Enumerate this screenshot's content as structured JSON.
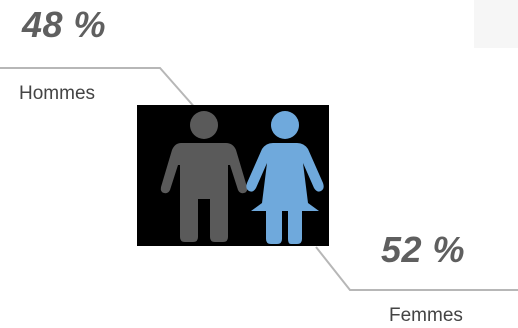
{
  "men": {
    "percent": "48 %",
    "label": "Hommes",
    "color": "#5a5a5a"
  },
  "women": {
    "percent": "52 %",
    "label": "Femmes",
    "color": "#6fa9dc"
  },
  "colors": {
    "text": "#5f5f5f",
    "leader_line": "#b7b7b7",
    "figure_background": "#000000"
  },
  "icons": [
    "male-person-icon",
    "female-person-icon"
  ]
}
